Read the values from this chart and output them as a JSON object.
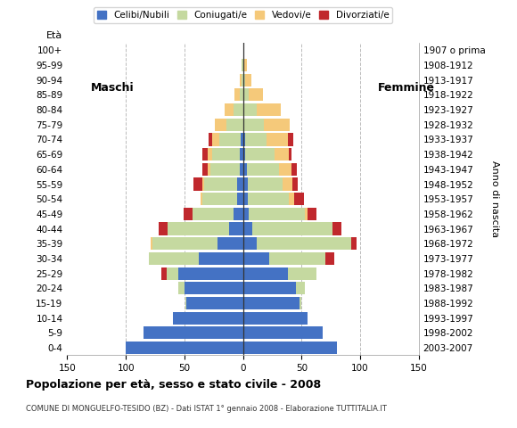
{
  "age_groups": [
    "0-4",
    "5-9",
    "10-14",
    "15-19",
    "20-24",
    "25-29",
    "30-34",
    "35-39",
    "40-44",
    "45-49",
    "50-54",
    "55-59",
    "60-64",
    "65-69",
    "70-74",
    "75-79",
    "80-84",
    "85-89",
    "90-94",
    "95-99",
    "100+"
  ],
  "birth_years": [
    "2003-2007",
    "1998-2002",
    "1993-1997",
    "1988-1992",
    "1983-1987",
    "1978-1982",
    "1973-1977",
    "1968-1972",
    "1963-1967",
    "1958-1962",
    "1953-1957",
    "1948-1952",
    "1943-1947",
    "1938-1942",
    "1933-1937",
    "1928-1932",
    "1923-1927",
    "1918-1922",
    "1913-1917",
    "1908-1912",
    "1907 o prima"
  ],
  "male_celibe": [
    100,
    85,
    60,
    48,
    50,
    55,
    38,
    22,
    12,
    8,
    5,
    5,
    3,
    3,
    2,
    0,
    0,
    0,
    0,
    0,
    0
  ],
  "male_coniugato": [
    0,
    0,
    0,
    1,
    5,
    10,
    42,
    55,
    52,
    35,
    30,
    28,
    25,
    23,
    18,
    14,
    8,
    3,
    1,
    1,
    0
  ],
  "male_vedovo": [
    0,
    0,
    0,
    0,
    0,
    0,
    0,
    2,
    0,
    0,
    1,
    2,
    2,
    4,
    6,
    10,
    8,
    4,
    2,
    0,
    0
  ],
  "male_divorziato": [
    0,
    0,
    0,
    0,
    0,
    5,
    0,
    0,
    8,
    8,
    0,
    7,
    5,
    5,
    3,
    0,
    0,
    0,
    0,
    0,
    0
  ],
  "female_celibe": [
    80,
    68,
    55,
    48,
    45,
    38,
    22,
    12,
    8,
    5,
    4,
    4,
    3,
    2,
    2,
    0,
    0,
    0,
    0,
    0,
    0
  ],
  "female_coniugato": [
    0,
    0,
    0,
    2,
    8,
    25,
    48,
    80,
    68,
    48,
    35,
    30,
    28,
    25,
    18,
    18,
    12,
    5,
    2,
    1,
    0
  ],
  "female_vedovo": [
    0,
    0,
    0,
    0,
    0,
    0,
    0,
    0,
    0,
    2,
    5,
    8,
    10,
    12,
    18,
    22,
    20,
    12,
    5,
    2,
    0
  ],
  "female_divorziato": [
    0,
    0,
    0,
    0,
    0,
    0,
    8,
    5,
    8,
    8,
    8,
    5,
    5,
    2,
    5,
    0,
    0,
    0,
    0,
    0,
    0
  ],
  "colors": {
    "celibe": "#4472c4",
    "coniugato": "#c5d9a0",
    "vedovo": "#f5c97a",
    "divorziato": "#c0282d"
  },
  "xlim": 150,
  "title": "Popolazione per età, sesso e stato civile - 2008",
  "subtitle": "COMUNE DI MONGUELFO-TESIDO (BZ) - Dati ISTAT 1° gennaio 2008 - Elaborazione TUTTITALIA.IT",
  "xlabel_left": "Maschi",
  "xlabel_right": "Femmine",
  "ylabel_left": "Età",
  "ylabel_right": "Anno di nascita",
  "legend_labels": [
    "Celibi/Nubili",
    "Coniugati/e",
    "Vedovi/e",
    "Divorziati/e"
  ],
  "bg_color": "#ffffff",
  "gridline_color": "#bbbbbb"
}
